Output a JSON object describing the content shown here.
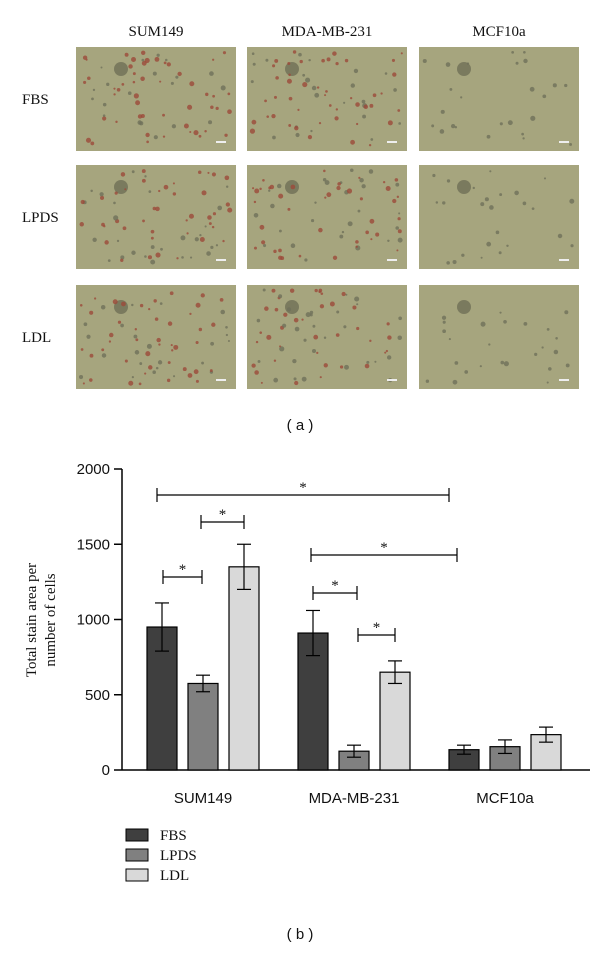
{
  "panel_a": {
    "columns": [
      "SUM149",
      "MDA-MB-231",
      "MCF10a"
    ],
    "rows": [
      "FBS",
      "LPDS",
      "LDL"
    ],
    "label": "( a )"
  },
  "chart_data": {
    "type": "bar",
    "label": "( b )",
    "ylabel": [
      "Total stain area per",
      "number of cells"
    ],
    "categories": [
      "SUM149",
      "MDA-MB-231",
      "MCF10a"
    ],
    "series": [
      {
        "name": "FBS",
        "color": "#3f3f3f",
        "values": [
          950,
          910,
          135
        ],
        "errors": [
          160,
          150,
          30
        ]
      },
      {
        "name": "LPDS",
        "color": "#808080",
        "values": [
          575,
          125,
          155
        ],
        "errors": [
          55,
          40,
          45
        ]
      },
      {
        "name": "LDL",
        "color": "#d9d9d9",
        "values": [
          1350,
          650,
          235
        ],
        "errors": [
          150,
          75,
          50
        ]
      }
    ],
    "ylim": [
      0,
      2000
    ],
    "yticks": [
      0,
      500,
      1000,
      1500,
      2000
    ],
    "annotations": [
      "*",
      "*",
      "*",
      "*",
      "*",
      "*"
    ]
  }
}
